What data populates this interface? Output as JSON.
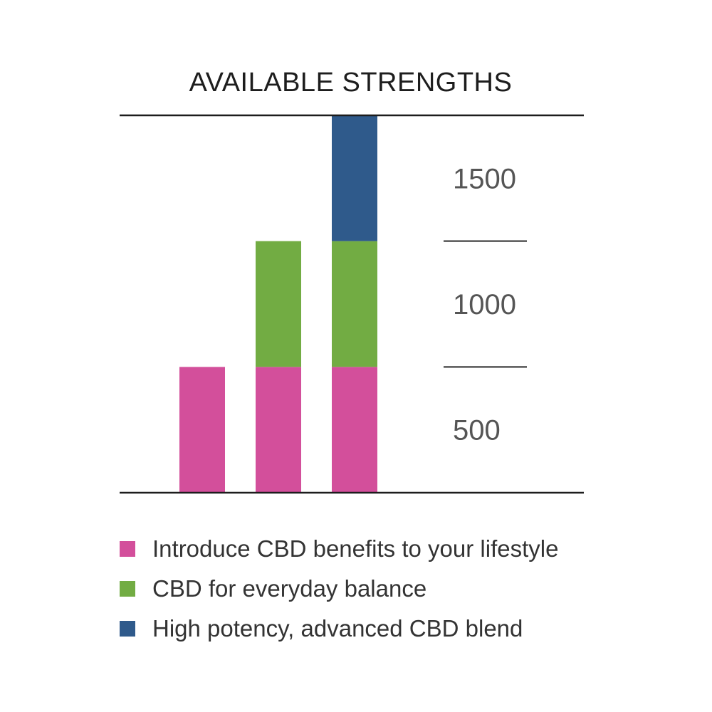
{
  "chart_data": {
    "type": "bar",
    "stacked": true,
    "title": "AVAILABLE STRENGTHS",
    "categories": [
      "",
      "",
      ""
    ],
    "series": [
      {
        "name": "Introduce CBD benefits to your lifestyle",
        "color": "#d34f9b",
        "values": [
          500,
          500,
          500
        ]
      },
      {
        "name": "CBD for everyday balance",
        "color": "#72ac43",
        "values": [
          0,
          500,
          500
        ]
      },
      {
        "name": "High potency, advanced CBD blend",
        "color": "#2f5a8b",
        "values": [
          0,
          0,
          500
        ]
      }
    ],
    "tick_labels": [
      "500",
      "1000",
      "1500"
    ],
    "ylim": [
      0,
      1500
    ],
    "grid": false,
    "legend": "bottom",
    "colors": {
      "axis": "#1d1d1d",
      "divider": "#555555",
      "text": "#555555"
    }
  }
}
